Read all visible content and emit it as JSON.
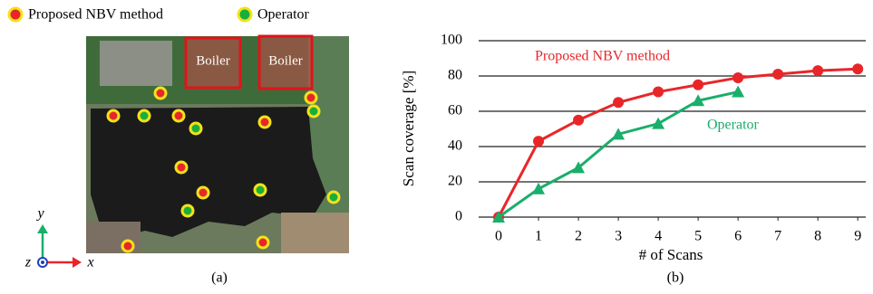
{
  "figure_a": {
    "labels": [
      "Boiler",
      "Boiler"
    ],
    "axes": [
      "y",
      "z",
      "x"
    ],
    "caption": "(a)"
  },
  "chart_data": {
    "type": "line",
    "caption": "(b)",
    "x_label": "# of Scans",
    "y_label": "Scan coverage [%]",
    "x": [
      0,
      1,
      2,
      3,
      4,
      5,
      6,
      7,
      8,
      9
    ],
    "series": [
      {
        "name": "Proposed NBV method",
        "color": "#e8262a",
        "marker": "circle",
        "values": [
          0,
          43,
          55,
          65,
          71,
          75,
          79,
          81,
          83,
          84
        ]
      },
      {
        "name": "Operator",
        "color": "#1aae6b",
        "marker": "triangle",
        "values": [
          0,
          16,
          28,
          47,
          53,
          66,
          71,
          null,
          null,
          null
        ]
      }
    ],
    "xlim": [
      -0.5,
      9.2
    ],
    "xticks": [
      0,
      1,
      2,
      3,
      4,
      5,
      6,
      7,
      8,
      9
    ],
    "ylim": [
      0,
      100
    ],
    "yticks": [
      0,
      20,
      40,
      60,
      80,
      100
    ],
    "grid": true
  }
}
